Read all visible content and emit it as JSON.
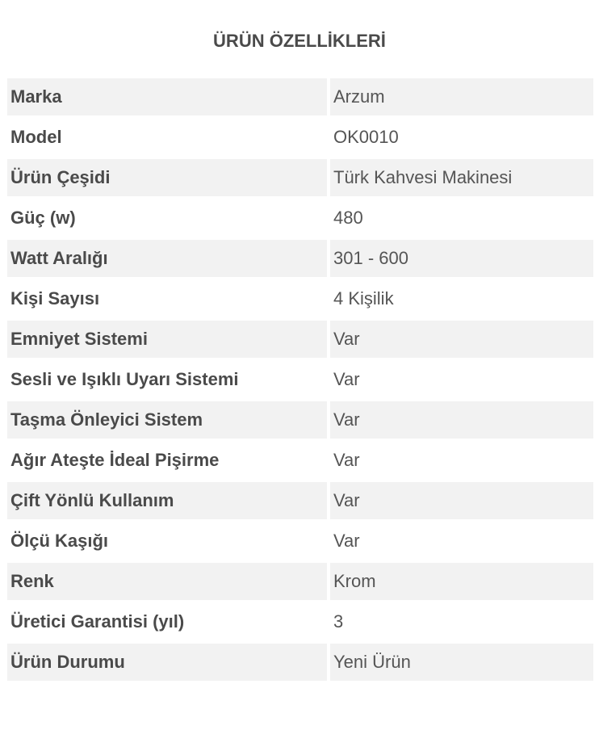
{
  "title": "ÜRÜN ÖZELLİKLERİ",
  "rows": [
    {
      "label": "Marka",
      "value": "Arzum"
    },
    {
      "label": "Model",
      "value": "OK0010"
    },
    {
      "label": "Ürün Çeşidi",
      "value": "Türk Kahvesi Makinesi"
    },
    {
      "label": "Güç (w)",
      "value": "480"
    },
    {
      "label": "Watt Aralığı",
      "value": "301 - 600"
    },
    {
      "label": "Kişi Sayısı",
      "value": "4 Kişilik"
    },
    {
      "label": "Emniyet Sistemi",
      "value": "Var"
    },
    {
      "label": "Sesli ve Işıklı Uyarı Sistemi",
      "value": "Var"
    },
    {
      "label": "Taşma Önleyici Sistem",
      "value": "Var"
    },
    {
      "label": "Ağır Ateşte İdeal Pişirme",
      "value": "Var"
    },
    {
      "label": "Çift Yönlü Kullanım",
      "value": "Var"
    },
    {
      "label": "Ölçü Kaşığı",
      "value": "Var"
    },
    {
      "label": "Renk",
      "value": "Krom"
    },
    {
      "label": "Üretici Garantisi (yıl)",
      "value": "3"
    },
    {
      "label": "Ürün Durumu",
      "value": "Yeni Ürün"
    }
  ]
}
